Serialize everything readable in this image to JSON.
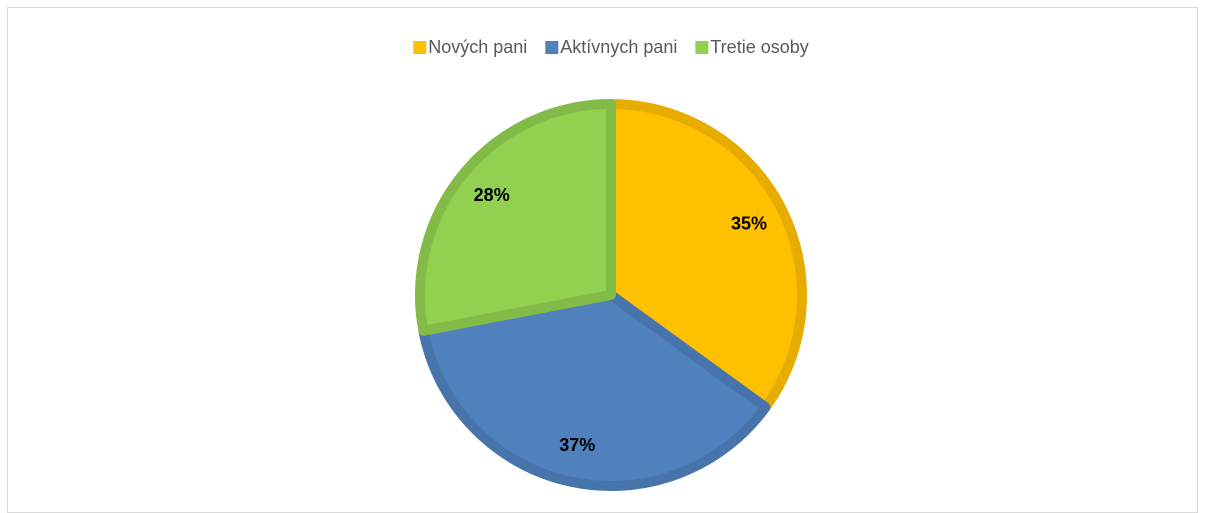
{
  "chart_data": {
    "type": "pie",
    "categories": [
      "Nových pani",
      "Aktívnych pani",
      "Tretie osoby"
    ],
    "values": [
      35,
      37,
      28
    ],
    "value_labels": [
      "35%",
      "37%",
      "28%"
    ],
    "colors": [
      "#FFC000",
      "#4F81BD",
      "#92D050"
    ],
    "legend": "top"
  }
}
